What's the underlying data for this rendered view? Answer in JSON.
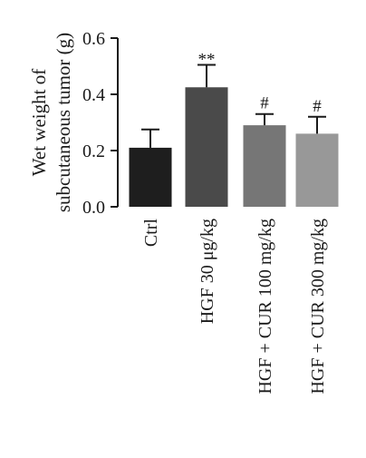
{
  "chart_data": {
    "type": "bar",
    "ylabel_lines": [
      "Wet weight of",
      "subcutaneous tumor (g)"
    ],
    "ylim": [
      0,
      0.6
    ],
    "yticks": [
      0.0,
      0.2,
      0.4,
      0.6
    ],
    "ytick_labels": [
      "0.0",
      "0.2",
      "0.4",
      "0.6"
    ],
    "categories": [
      "Ctrl",
      "HGF 30 μg/kg",
      "HGF + CUR 100 mg/kg",
      "HGF + CUR 300 mg/kg"
    ],
    "values": [
      0.21,
      0.425,
      0.29,
      0.26
    ],
    "errors": [
      0.065,
      0.08,
      0.04,
      0.06
    ],
    "annotations": [
      "",
      "**",
      "#",
      "#"
    ],
    "bar_colors": [
      "#1e1e1e",
      "#4a4a4a",
      "#767676",
      "#989898"
    ],
    "axis_color": "#1a1a1a"
  }
}
